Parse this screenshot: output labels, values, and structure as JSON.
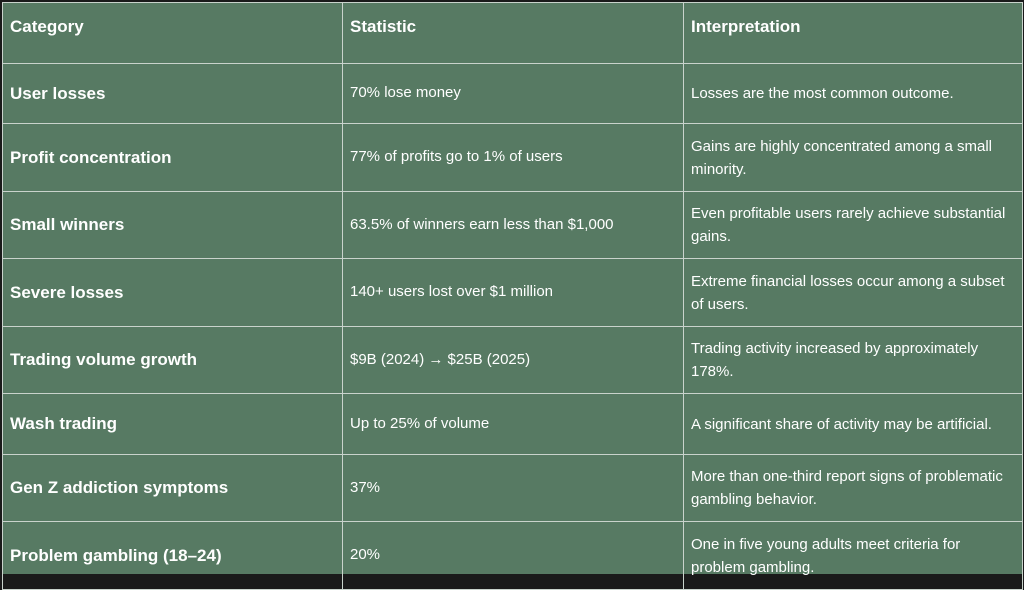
{
  "table": {
    "header": [
      "Category",
      "Statistic",
      "Interpretation"
    ],
    "rows": [
      [
        "User losses",
        "70% lose money",
        "Losses are the most common outcome."
      ],
      [
        "Profit concentration",
        "77% of profits go to 1% of users",
        "Gains are highly concentrated among a small minority."
      ],
      [
        "Small winners",
        "63.5% of winners earn less than $1,000",
        "Even profitable users rarely achieve substantial gains."
      ],
      [
        "Severe losses",
        "140+ users lost over $1 million",
        "Extreme financial losses occur among a subset of users."
      ],
      [
        "Trading volume growth",
        "$9B (2024) → $25B (2025)",
        "Trading activity increased by approximately 178%."
      ],
      [
        "Wash trading",
        "Up to 25% of volume",
        "A significant share of activity may be artificial."
      ],
      [
        "Gen Z addiction symptoms",
        "37%",
        "More than one-third report signs of problematic gambling behavior."
      ],
      [
        "Problem gambling (18–24)",
        "20%",
        "One in five young adults meet criteria for problem gambling."
      ]
    ]
  }
}
